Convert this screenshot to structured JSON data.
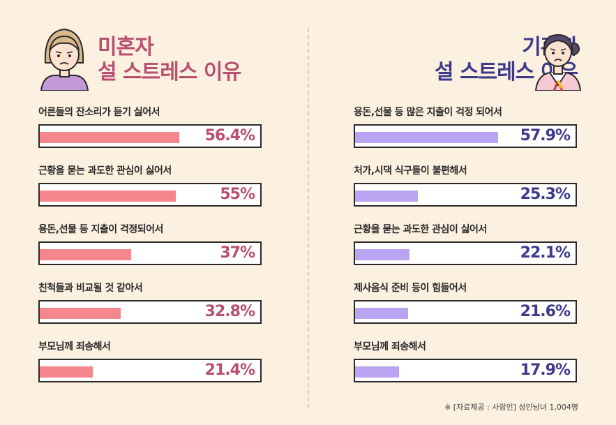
{
  "colors": {
    "background": "#fcf0e0",
    "left_accent": "#b85070",
    "left_bar": "#f5868e",
    "right_accent": "#3d3a8a",
    "right_bar": "#b9a4f2"
  },
  "chart_data": [
    {
      "type": "bar",
      "orientation": "horizontal",
      "title_line1": "미혼자",
      "title_line2": "설 스트레스 이유",
      "categories": [
        "어른들의 잔소리가 듣기 싫어서",
        "근황을 묻는 과도한 관심이 싫어서",
        "용돈,선물 등 지출이 걱정되어서",
        "친척들과 비교될 것 같아서",
        "부모님께 죄송해서"
      ],
      "values": [
        56.4,
        55,
        37,
        32.8,
        21.4
      ],
      "value_labels": [
        "56.4%",
        "55%",
        "37%",
        "32.8%",
        "21.4%"
      ],
      "xlim": [
        0,
        100
      ]
    },
    {
      "type": "bar",
      "orientation": "horizontal",
      "title_line1": "기혼자",
      "title_line2": "설 스트레스 이유",
      "categories": [
        "용돈,선물 등 많은 지출이 걱정 되어서",
        "처가,시댁 식구들이 불편해서",
        "근황을 묻는 과도한 관심이 싫어서",
        "제사음식 준비 등이 힘들어서",
        "부모님께 죄송해서"
      ],
      "values": [
        57.9,
        25.3,
        22.1,
        21.6,
        17.9
      ],
      "value_labels": [
        "57.9%",
        "25.3%",
        "22.1%",
        "21.6%",
        "17.9%"
      ],
      "xlim": [
        0,
        100
      ]
    }
  ],
  "source": "※ [자료제공 : 사람인] 성인남녀 1,004명",
  "icons": {
    "left": "single-person-icon",
    "right": "married-woman-hanbok-icon"
  }
}
